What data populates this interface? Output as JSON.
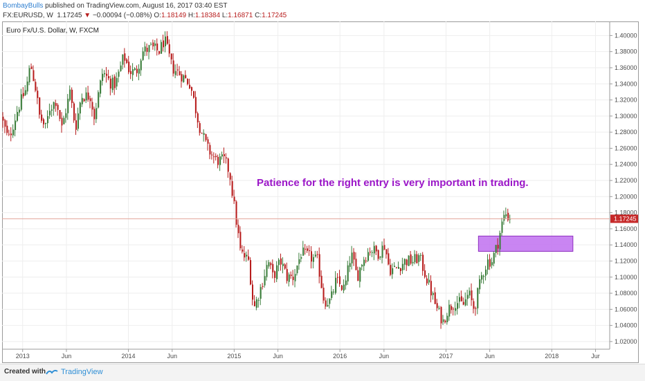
{
  "header": {
    "author": "BombayBulls",
    "published": " published on TradingView.com, August 16, 2017 03:40 EST"
  },
  "ohlc": {
    "symbol": "FX:EURUSD, W",
    "last": "1.17245",
    "change": "−0.00094 (−0.08%)",
    "open_label": "O:",
    "open": "1.18149",
    "high_label": "H:",
    "high": "1.18384",
    "low_label": "L:",
    "low": "1.16871",
    "close_label": "C:",
    "close": "1.17245"
  },
  "footer": {
    "created": "Created with",
    "brand": "TradingView",
    "logo_icon": "tradingview-logo-icon"
  },
  "colors": {
    "up": "#3a7d3a",
    "down": "#b71c1c",
    "annotation": "#9b16c8",
    "zone_fill": "#c070f0",
    "zone_stroke": "#8f2fc0",
    "last_price_line": "#e2a49a",
    "last_price_tag": "#c62828",
    "grid": "#eeeeee"
  },
  "chart_data": {
    "type": "candlestick",
    "legend": "Euro Fx/U.S. Dollar, W, FXCM",
    "annotation": "Patience for the right entry is very important in trading.",
    "x_tick_labels": [
      "2013",
      "Jun",
      "2014",
      "Jun",
      "2015",
      "Jun",
      "2016",
      "Jun",
      "2017",
      "Jun",
      "2018",
      "Jur"
    ],
    "y_tick_labels": [
      "1.40000",
      "1.38000",
      "1.36000",
      "1.34000",
      "1.32000",
      "1.30000",
      "1.28000",
      "1.26000",
      "1.24000",
      "1.22000",
      "1.20000",
      "1.18000",
      "1.16000",
      "1.14000",
      "1.12000",
      "1.10000",
      "1.08000",
      "1.06000",
      "1.04000",
      "1.02000"
    ],
    "ylim": [
      1.0105,
      1.4175
    ],
    "xlim": [
      "2012-10-22",
      "2018-07-20"
    ],
    "grid": true,
    "last_price": 1.17245,
    "last_price_label": "1.17245",
    "zone": {
      "x_start": "2017-04-23",
      "x_end": "2018-03-15",
      "low": 1.132,
      "high": 1.151
    },
    "series": [
      {
        "date": "2012-10-22",
        "close": 1.3
      },
      {
        "date": "2012-11-17",
        "close": 1.27
      },
      {
        "date": "2012-12-20",
        "close": 1.31
      },
      {
        "date": "2013-01-18",
        "close": 1.335
      },
      {
        "date": "2013-02-01",
        "close": 1.365
      },
      {
        "date": "2013-02-18",
        "close": 1.335
      },
      {
        "date": "2013-03-04",
        "close": 1.3
      },
      {
        "date": "2013-03-25",
        "close": 1.285
      },
      {
        "date": "2013-04-08",
        "close": 1.31
      },
      {
        "date": "2013-05-01",
        "close": 1.32
      },
      {
        "date": "2013-05-20",
        "close": 1.285
      },
      {
        "date": "2013-06-17",
        "close": 1.33
      },
      {
        "date": "2013-07-06",
        "close": 1.285
      },
      {
        "date": "2013-07-26",
        "close": 1.325
      },
      {
        "date": "2013-08-26",
        "close": 1.325
      },
      {
        "date": "2013-09-09",
        "close": 1.3
      },
      {
        "date": "2013-10-08",
        "close": 1.355
      },
      {
        "date": "2013-11-07",
        "close": 1.34
      },
      {
        "date": "2013-11-22",
        "close": 1.34
      },
      {
        "date": "2013-12-20",
        "close": 1.375
      },
      {
        "date": "2014-01-10",
        "close": 1.355
      },
      {
        "date": "2014-02-01",
        "close": 1.355
      },
      {
        "date": "2014-02-22",
        "close": 1.38
      },
      {
        "date": "2014-03-25",
        "close": 1.385
      },
      {
        "date": "2014-04-20",
        "close": 1.38
      },
      {
        "date": "2014-05-09",
        "close": 1.395
      },
      {
        "date": "2014-06-05",
        "close": 1.36
      },
      {
        "date": "2014-07-09",
        "close": 1.35
      },
      {
        "date": "2014-08-06",
        "close": 1.34
      },
      {
        "date": "2014-09-05",
        "close": 1.29
      },
      {
        "date": "2014-10-04",
        "close": 1.26
      },
      {
        "date": "2014-11-03",
        "close": 1.245
      },
      {
        "date": "2014-12-02",
        "close": 1.245
      },
      {
        "date": "2014-12-20",
        "close": 1.23
      },
      {
        "date": "2015-01-08",
        "close": 1.18
      },
      {
        "date": "2015-01-27",
        "close": 1.13
      },
      {
        "date": "2015-02-24",
        "close": 1.12
      },
      {
        "date": "2015-03-13",
        "close": 1.06
      },
      {
        "date": "2015-04-05",
        "close": 1.085
      },
      {
        "date": "2015-05-02",
        "close": 1.12
      },
      {
        "date": "2015-05-19",
        "close": 1.1
      },
      {
        "date": "2015-06-14",
        "close": 1.12
      },
      {
        "date": "2015-07-06",
        "close": 1.1
      },
      {
        "date": "2015-07-28",
        "close": 1.1
      },
      {
        "date": "2015-08-24",
        "close": 1.13
      },
      {
        "date": "2015-09-23",
        "close": 1.125
      },
      {
        "date": "2015-10-20",
        "close": 1.12
      },
      {
        "date": "2015-11-11",
        "close": 1.07
      },
      {
        "date": "2015-12-03",
        "close": 1.07
      },
      {
        "date": "2015-12-22",
        "close": 1.095
      },
      {
        "date": "2016-01-21",
        "close": 1.085
      },
      {
        "date": "2016-02-12",
        "close": 1.13
      },
      {
        "date": "2016-03-04",
        "close": 1.1
      },
      {
        "date": "2016-03-22",
        "close": 1.12
      },
      {
        "date": "2016-04-18",
        "close": 1.135
      },
      {
        "date": "2016-05-17",
        "close": 1.13
      },
      {
        "date": "2016-06-07",
        "close": 1.14
      },
      {
        "date": "2016-06-23",
        "close": 1.11
      },
      {
        "date": "2016-07-15",
        "close": 1.11
      },
      {
        "date": "2016-08-16",
        "close": 1.12
      },
      {
        "date": "2016-09-13",
        "close": 1.12
      },
      {
        "date": "2016-10-05",
        "close": 1.125
      },
      {
        "date": "2016-10-24",
        "close": 1.105
      },
      {
        "date": "2016-11-16",
        "close": 1.08
      },
      {
        "date": "2016-12-05",
        "close": 1.06
      },
      {
        "date": "2016-12-26",
        "close": 1.045
      },
      {
        "date": "2017-01-11",
        "close": 1.06
      },
      {
        "date": "2017-02-08",
        "close": 1.07
      },
      {
        "date": "2017-03-05",
        "close": 1.065
      },
      {
        "date": "2017-03-24",
        "close": 1.08
      },
      {
        "date": "2017-04-12",
        "close": 1.06
      },
      {
        "date": "2017-05-07",
        "close": 1.1
      },
      {
        "date": "2017-05-28",
        "close": 1.12
      },
      {
        "date": "2017-06-12",
        "close": 1.12
      },
      {
        "date": "2017-07-01",
        "close": 1.14
      },
      {
        "date": "2017-07-16",
        "close": 1.165
      },
      {
        "date": "2017-07-28",
        "close": 1.18
      },
      {
        "date": "2017-08-13",
        "close": 1.1725
      }
    ]
  }
}
